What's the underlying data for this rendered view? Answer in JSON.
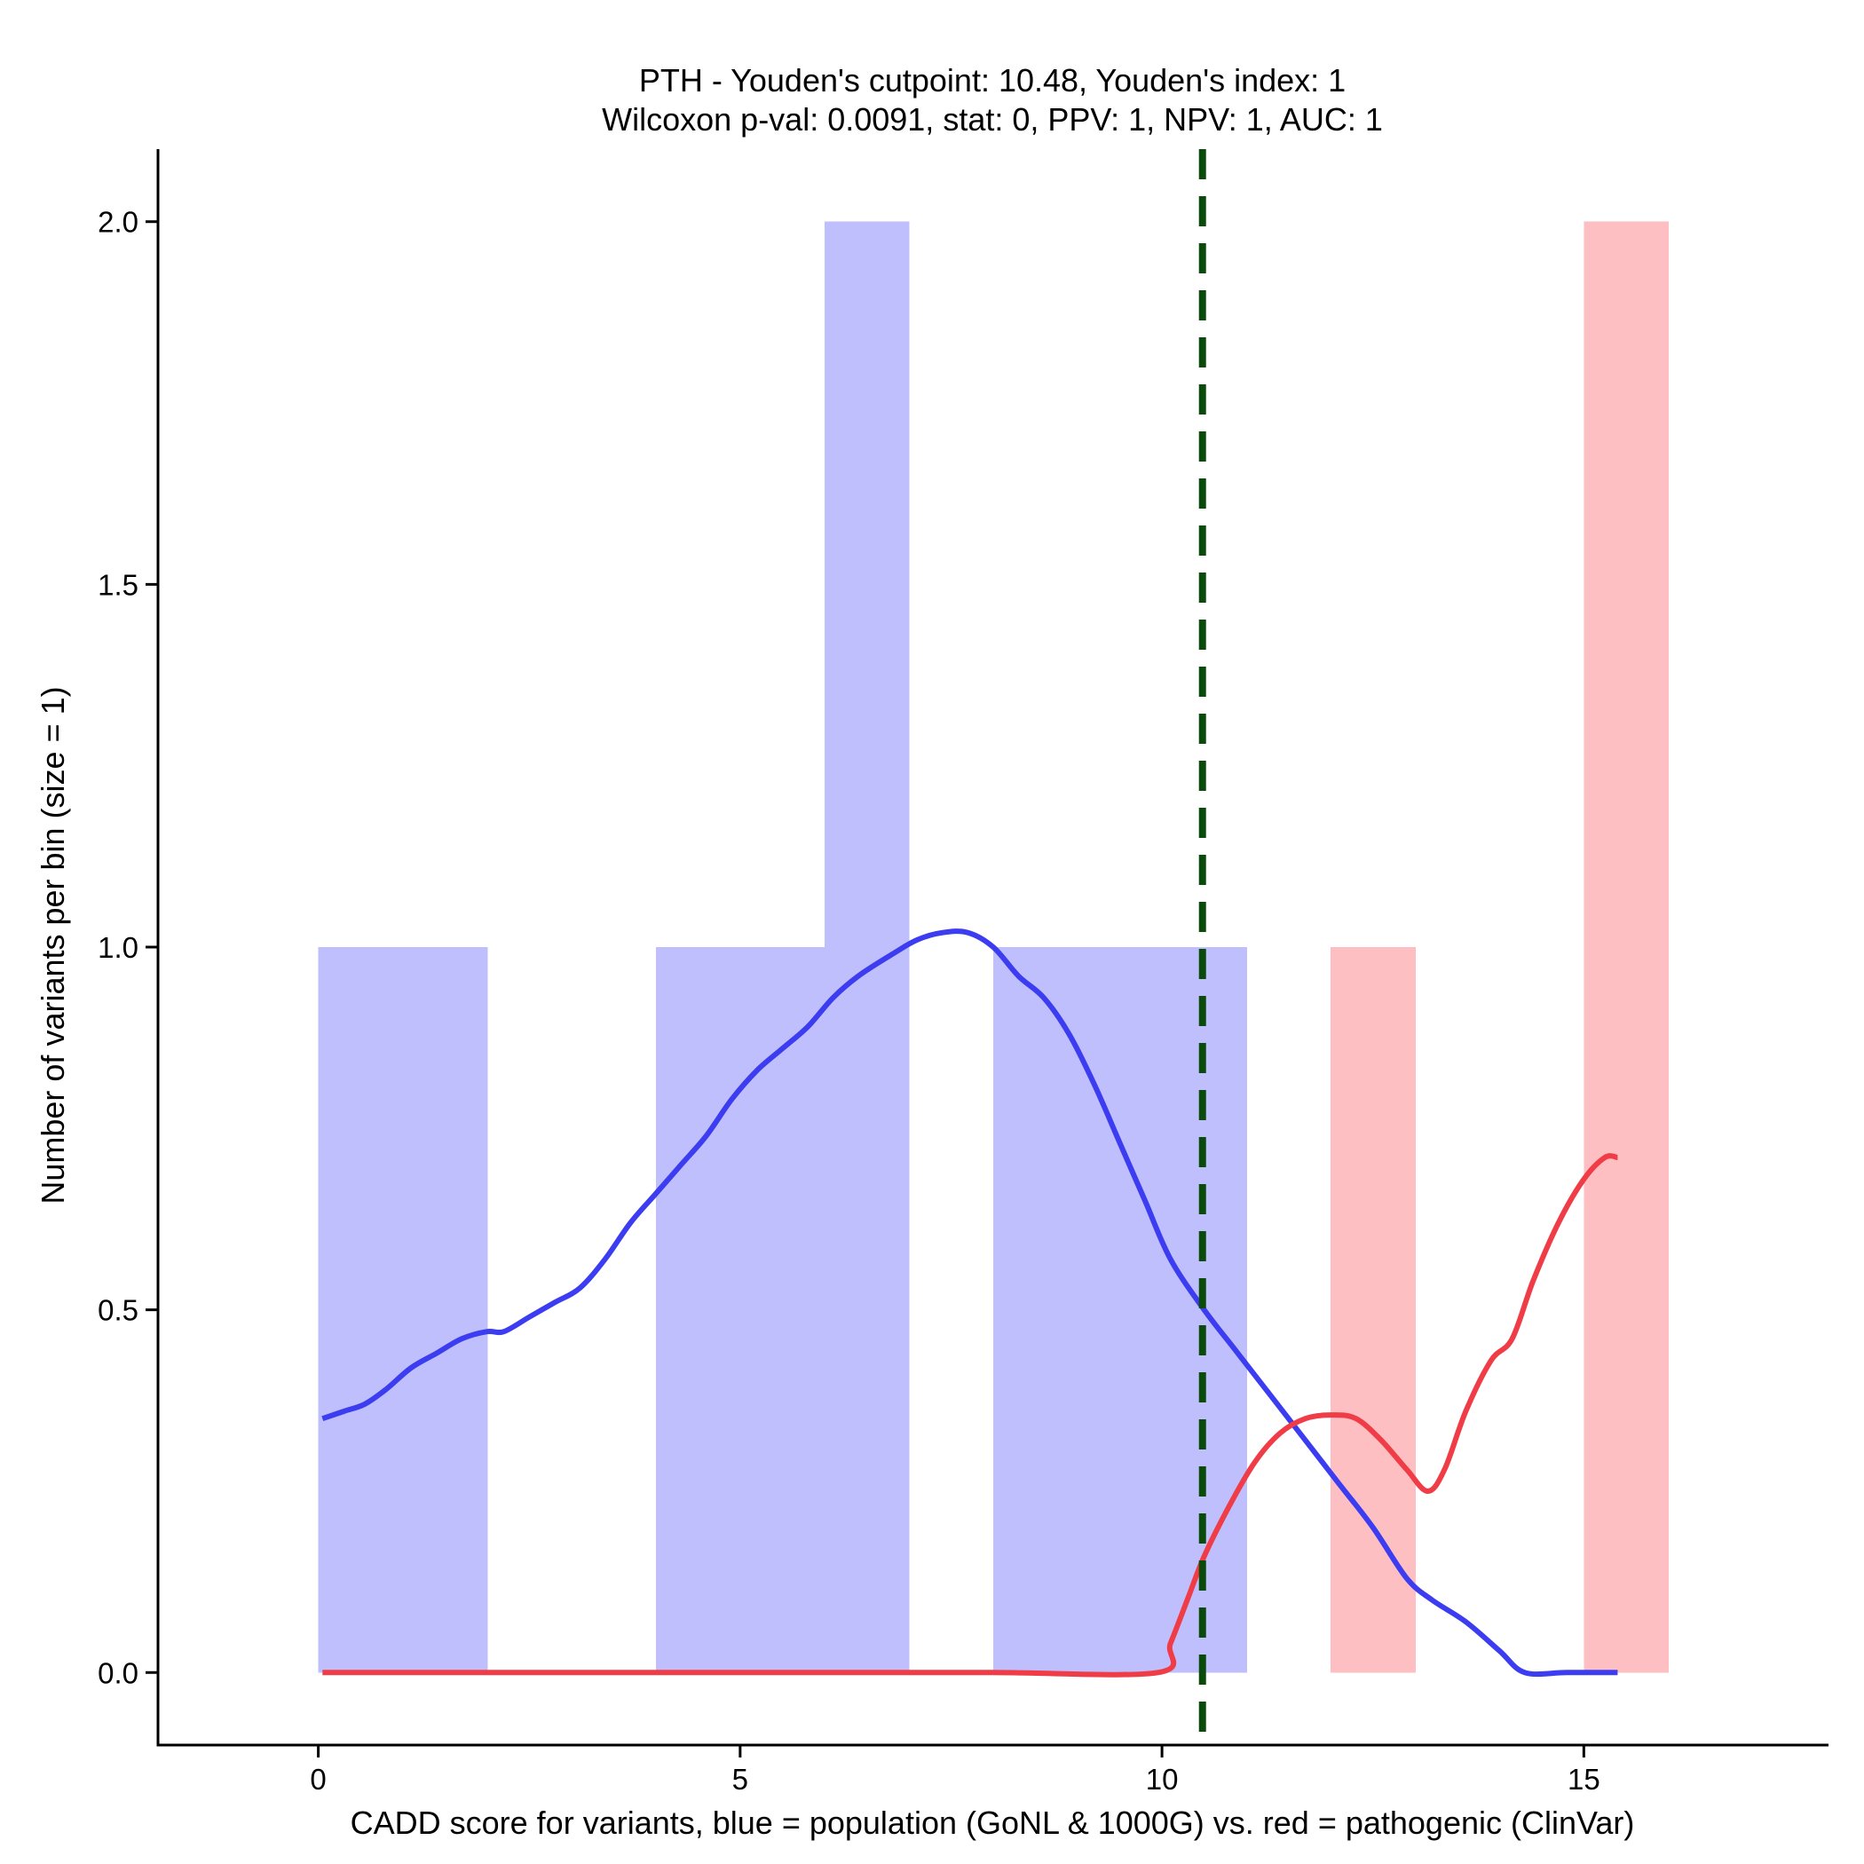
{
  "chart_data": {
    "type": "bar",
    "title_line1": "PTH - Youden's cutpoint: 10.48, Youden's index: 1",
    "title_line2": "Wilcoxon p-val: 0.0091, stat: 0, PPV: 1, NPV: 1, AUC: 1",
    "xlabel": "CADD score for variants, blue = population (GoNL & 1000G) vs. red = pathogenic (ClinVar)",
    "ylabel": "Number of variants per bin (size = 1)",
    "xlim": [
      -1.9,
      17.9
    ],
    "ylim": [
      -0.1,
      2.1
    ],
    "x_ticks": [
      0,
      5,
      10,
      15
    ],
    "x_tick_labels": [
      "0",
      "5",
      "10",
      "15"
    ],
    "y_ticks": [
      0,
      0.5,
      1,
      1.5,
      2
    ],
    "y_tick_labels": [
      "0.0",
      "0.5",
      "1.0",
      "1.5",
      "2.0"
    ],
    "grid": false,
    "cutpoint": 10.48,
    "colors": {
      "population_bar": "#bfbffd",
      "pathogenic_bar": "#fdbfc2",
      "population_line": "#3c3cf0",
      "pathogenic_line": "#f03c46",
      "cutpoint_line": "#0a4a0a",
      "axis": "#000000"
    },
    "series": [
      {
        "name": "population (GoNL & 1000G)",
        "bins": [
          {
            "x0": 0,
            "x1": 1,
            "count": 1
          },
          {
            "x0": 1,
            "x1": 2,
            "count": 1
          },
          {
            "x0": 4,
            "x1": 5,
            "count": 1
          },
          {
            "x0": 5,
            "x1": 6,
            "count": 1
          },
          {
            "x0": 6,
            "x1": 7,
            "count": 2
          },
          {
            "x0": 8,
            "x1": 9,
            "count": 1
          },
          {
            "x0": 9,
            "x1": 10,
            "count": 1
          },
          {
            "x0": 10,
            "x1": 11,
            "count": 1
          }
        ],
        "density": [
          [
            0.05,
            0.35
          ],
          [
            0.3,
            0.36
          ],
          [
            0.55,
            0.37
          ],
          [
            0.8,
            0.39
          ],
          [
            1.1,
            0.42
          ],
          [
            1.4,
            0.44
          ],
          [
            1.7,
            0.46
          ],
          [
            2.0,
            0.47
          ],
          [
            2.2,
            0.47
          ],
          [
            2.5,
            0.49
          ],
          [
            2.8,
            0.51
          ],
          [
            3.1,
            0.53
          ],
          [
            3.4,
            0.57
          ],
          [
            3.7,
            0.62
          ],
          [
            4.0,
            0.66
          ],
          [
            4.3,
            0.7
          ],
          [
            4.6,
            0.74
          ],
          [
            4.9,
            0.79
          ],
          [
            5.2,
            0.83
          ],
          [
            5.5,
            0.86
          ],
          [
            5.8,
            0.89
          ],
          [
            6.1,
            0.93
          ],
          [
            6.4,
            0.96
          ],
          [
            6.8,
            0.99
          ],
          [
            7.1,
            1.01
          ],
          [
            7.4,
            1.02
          ],
          [
            7.7,
            1.02
          ],
          [
            8.0,
            1.0
          ],
          [
            8.3,
            0.96
          ],
          [
            8.6,
            0.93
          ],
          [
            8.9,
            0.88
          ],
          [
            9.2,
            0.81
          ],
          [
            9.5,
            0.73
          ],
          [
            9.8,
            0.65
          ],
          [
            10.1,
            0.57
          ],
          [
            10.5,
            0.5
          ],
          [
            10.9,
            0.44
          ],
          [
            11.3,
            0.38
          ],
          [
            11.7,
            0.32
          ],
          [
            12.1,
            0.26
          ],
          [
            12.5,
            0.2
          ],
          [
            12.9,
            0.13
          ],
          [
            13.2,
            0.1
          ],
          [
            13.6,
            0.07
          ],
          [
            14.0,
            0.03
          ],
          [
            14.3,
            0.0
          ],
          [
            14.8,
            0.0
          ],
          [
            15.4,
            0.0
          ]
        ]
      },
      {
        "name": "pathogenic (ClinVar)",
        "bins": [
          {
            "x0": 12,
            "x1": 13,
            "count": 1
          },
          {
            "x0": 15,
            "x1": 16,
            "count": 2
          }
        ],
        "density": [
          [
            0.05,
            0.0
          ],
          [
            2.0,
            0.0
          ],
          [
            4.0,
            0.0
          ],
          [
            6.0,
            0.0
          ],
          [
            8.0,
            0.0
          ],
          [
            9.95,
            0.0
          ],
          [
            10.1,
            0.04
          ],
          [
            10.3,
            0.1
          ],
          [
            10.5,
            0.16
          ],
          [
            10.8,
            0.23
          ],
          [
            11.1,
            0.29
          ],
          [
            11.4,
            0.33
          ],
          [
            11.7,
            0.35
          ],
          [
            12.0,
            0.355
          ],
          [
            12.3,
            0.35
          ],
          [
            12.6,
            0.32
          ],
          [
            12.9,
            0.28
          ],
          [
            13.15,
            0.25
          ],
          [
            13.35,
            0.28
          ],
          [
            13.6,
            0.36
          ],
          [
            13.9,
            0.43
          ],
          [
            14.15,
            0.46
          ],
          [
            14.4,
            0.54
          ],
          [
            14.7,
            0.62
          ],
          [
            15.0,
            0.68
          ],
          [
            15.25,
            0.71
          ],
          [
            15.4,
            0.71
          ]
        ]
      }
    ]
  }
}
